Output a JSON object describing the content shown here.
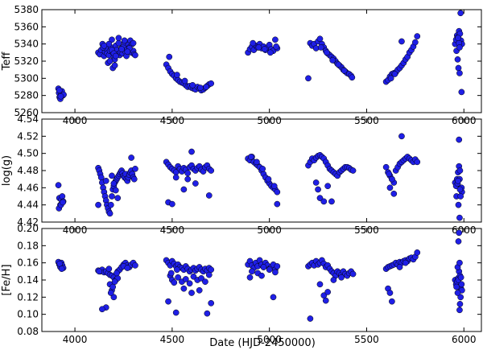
{
  "chart_data": {
    "type": "scatter",
    "xlabel": "Date (HJD-2450000)",
    "xlim": [
      3830,
      6090
    ],
    "xticks": [
      4000,
      4500,
      5000,
      5500,
      6000
    ],
    "marker_color": "#1f1fe6",
    "panels": [
      {
        "ylabel": "Teff",
        "ylim": [
          5260,
          5380
        ],
        "yticks": [
          5260,
          5280,
          5300,
          5320,
          5340,
          5360,
          5380
        ],
        "x": [
          3915,
          3918,
          3921,
          3925,
          3930,
          3933,
          3938,
          3942,
          3920,
          3927,
          4120,
          4128,
          4135,
          4142,
          4150,
          4155,
          4160,
          4165,
          4170,
          4175,
          4180,
          4185,
          4190,
          4195,
          4200,
          4205,
          4210,
          4215,
          4220,
          4225,
          4230,
          4235,
          4240,
          4245,
          4250,
          4255,
          4260,
          4265,
          4270,
          4275,
          4280,
          4285,
          4290,
          4295,
          4300,
          4305,
          4310,
          4145,
          4175,
          4195,
          4205,
          4225,
          4255,
          4280,
          4300,
          4180,
          4190,
          4200,
          4210,
          4150,
          4240,
          4270,
          4470,
          4480,
          4490,
          4500,
          4510,
          4520,
          4530,
          4540,
          4550,
          4560,
          4570,
          4580,
          4590,
          4600,
          4610,
          4620,
          4630,
          4640,
          4650,
          4660,
          4670,
          4680,
          4690,
          4700,
          4485,
          4525,
          4565,
          4605,
          4645,
          4675,
          4890,
          4900,
          4910,
          4920,
          4930,
          4940,
          4950,
          4960,
          4970,
          4980,
          4990,
          5000,
          5010,
          5020,
          5030,
          5040,
          4915,
          4945,
          4975,
          5005,
          5035,
          5200,
          5210,
          5220,
          5230,
          5240,
          5250,
          5260,
          5270,
          5280,
          5290,
          5300,
          5310,
          5320,
          5330,
          5340,
          5350,
          5360,
          5370,
          5380,
          5390,
          5400,
          5410,
          5420,
          5425,
          5265,
          5295,
          5325,
          5355,
          5385,
          5600,
          5610,
          5620,
          5630,
          5640,
          5650,
          5660,
          5670,
          5680,
          5690,
          5700,
          5710,
          5720,
          5730,
          5740,
          5750,
          5760,
          5680,
          5625,
          5645,
          5955,
          5960,
          5965,
          5970,
          5975,
          5980,
          5985,
          5990,
          5962,
          5968,
          5972,
          5978,
          5983,
          5988,
          5975,
          5970,
          5978
        ],
        "y": [
          5288,
          5283,
          5278,
          5276,
          5282,
          5285,
          5280,
          5281,
          5286,
          5279,
          5330,
          5328,
          5333,
          5340,
          5326,
          5331,
          5335,
          5329,
          5318,
          5327,
          5332,
          5336,
          5345,
          5330,
          5325,
          5322,
          5338,
          5333,
          5328,
          5341,
          5327,
          5330,
          5335,
          5329,
          5337,
          5342,
          5331,
          5326,
          5334,
          5339,
          5336,
          5344,
          5330,
          5340,
          5332,
          5328,
          5327,
          5336,
          5340,
          5312,
          5315,
          5347,
          5344,
          5335,
          5341,
          5320,
          5333,
          5329,
          5326,
          5338,
          5334,
          5331,
          5316,
          5312,
          5308,
          5305,
          5303,
          5300,
          5298,
          5296,
          5295,
          5294,
          5292,
          5290,
          5291,
          5289,
          5288,
          5287,
          5290,
          5288,
          5286,
          5287,
          5289,
          5291,
          5293,
          5294,
          5325,
          5304,
          5297,
          5292,
          5289,
          5290,
          5330,
          5334,
          5337,
          5333,
          5338,
          5336,
          5340,
          5335,
          5337,
          5333,
          5336,
          5339,
          5334,
          5332,
          5345,
          5335,
          5341,
          5336,
          5334,
          5330,
          5337,
          5300,
          5341,
          5338,
          5340,
          5335,
          5343,
          5346,
          5340,
          5336,
          5332,
          5329,
          5327,
          5325,
          5323,
          5320,
          5317,
          5315,
          5313,
          5310,
          5308,
          5306,
          5305,
          5303,
          5301,
          5336,
          5330,
          5321,
          5316,
          5309,
          5296,
          5298,
          5302,
          5305,
          5306,
          5307,
          5310,
          5312,
          5315,
          5318,
          5322,
          5325,
          5330,
          5333,
          5337,
          5342,
          5349,
          5343,
          5300,
          5305,
          5340,
          5345,
          5350,
          5348,
          5355,
          5352,
          5344,
          5340,
          5332,
          5322,
          5312,
          5306,
          5376,
          5284,
          5341,
          5347,
          5336
        ]
      },
      {
        "ylabel": "log(g)",
        "ylim": [
          4.42,
          4.54
        ],
        "yticks": [
          4.42,
          4.44,
          4.46,
          4.48,
          4.5,
          4.52,
          4.54
        ],
        "x": [
          3915,
          3920,
          3925,
          3930,
          3935,
          3940,
          3918,
          3928,
          3938,
          4120,
          4125,
          4130,
          4135,
          4140,
          4145,
          4150,
          4155,
          4160,
          4165,
          4170,
          4175,
          4180,
          4185,
          4190,
          4195,
          4200,
          4205,
          4210,
          4215,
          4220,
          4225,
          4230,
          4235,
          4240,
          4245,
          4250,
          4255,
          4260,
          4265,
          4270,
          4275,
          4280,
          4285,
          4290,
          4295,
          4300,
          4305,
          4310,
          4120,
          4160,
          4190,
          4200,
          4210,
          4220,
          4290,
          4470,
          4480,
          4490,
          4500,
          4510,
          4520,
          4530,
          4540,
          4550,
          4560,
          4570,
          4580,
          4590,
          4600,
          4610,
          4620,
          4630,
          4640,
          4650,
          4660,
          4670,
          4680,
          4690,
          4700,
          4480,
          4500,
          4560,
          4600,
          4620,
          4690,
          4520,
          4580,
          4890,
          4900,
          4910,
          4920,
          4930,
          4940,
          4950,
          4960,
          4970,
          4980,
          4990,
          5000,
          5010,
          5020,
          5030,
          5040,
          4905,
          4935,
          4965,
          4995,
          5025,
          5040,
          5200,
          5210,
          5220,
          5230,
          5240,
          5250,
          5260,
          5270,
          5280,
          5290,
          5300,
          5310,
          5320,
          5330,
          5340,
          5350,
          5360,
          5370,
          5380,
          5390,
          5400,
          5410,
          5420,
          5430,
          5240,
          5250,
          5260,
          5280,
          5300,
          5320,
          5600,
          5610,
          5620,
          5630,
          5640,
          5650,
          5660,
          5670,
          5680,
          5690,
          5700,
          5710,
          5720,
          5730,
          5740,
          5750,
          5760,
          5620,
          5640,
          5680,
          5615,
          5630,
          5955,
          5960,
          5965,
          5970,
          5975,
          5980,
          5985,
          5990,
          5962,
          5968,
          5972,
          5978,
          5983,
          5988,
          5975,
          5978,
          5970,
          5980
        ],
        "y": [
          4.463,
          4.448,
          4.44,
          4.446,
          4.45,
          4.444,
          4.436,
          4.44,
          4.443,
          4.483,
          4.48,
          4.476,
          4.472,
          4.466,
          4.46,
          4.455,
          4.45,
          4.445,
          4.44,
          4.436,
          4.432,
          4.43,
          4.44,
          4.45,
          4.458,
          4.462,
          4.466,
          4.468,
          4.47,
          4.472,
          4.474,
          4.476,
          4.478,
          4.48,
          4.477,
          4.474,
          4.472,
          4.476,
          4.47,
          4.468,
          4.472,
          4.475,
          4.478,
          4.48,
          4.476,
          4.472,
          4.47,
          4.482,
          4.44,
          4.468,
          4.474,
          4.465,
          4.457,
          4.448,
          4.495,
          4.49,
          4.487,
          4.484,
          4.482,
          4.48,
          4.478,
          4.485,
          4.482,
          4.479,
          4.483,
          4.481,
          4.477,
          4.484,
          4.486,
          4.482,
          4.48,
          4.483,
          4.485,
          4.481,
          4.479,
          4.484,
          4.486,
          4.482,
          4.48,
          4.443,
          4.441,
          4.458,
          4.502,
          4.465,
          4.451,
          4.472,
          4.47,
          4.494,
          4.492,
          4.496,
          4.49,
          4.488,
          4.486,
          4.484,
          4.48,
          4.476,
          4.472,
          4.468,
          4.465,
          4.462,
          4.46,
          4.458,
          4.455,
          4.496,
          4.49,
          4.482,
          4.47,
          4.462,
          4.441,
          4.486,
          4.49,
          4.494,
          4.492,
          4.495,
          4.497,
          4.498,
          4.496,
          4.494,
          4.49,
          4.486,
          4.482,
          4.48,
          4.478,
          4.476,
          4.474,
          4.478,
          4.48,
          4.482,
          4.484,
          4.484,
          4.483,
          4.481,
          4.48,
          4.466,
          4.458,
          4.448,
          4.444,
          4.462,
          4.444,
          4.484,
          4.478,
          4.474,
          4.47,
          4.466,
          4.48,
          4.484,
          4.488,
          4.49,
          4.492,
          4.494,
          4.496,
          4.494,
          4.492,
          4.49,
          4.493,
          4.49,
          4.46,
          4.453,
          4.52,
          4.476,
          4.47,
          4.466,
          4.462,
          4.47,
          4.478,
          4.485,
          4.48,
          4.46,
          4.455,
          4.45,
          4.465,
          4.44,
          4.47,
          4.45,
          4.46,
          4.516,
          4.425,
          4.468,
          4.458
        ]
      },
      {
        "ylabel": "[Fe/H]",
        "ylim": [
          0.08,
          0.2
        ],
        "yticks": [
          0.08,
          0.1,
          0.12,
          0.14,
          0.16,
          0.18,
          0.2
        ],
        "x": [
          3915,
          3920,
          3925,
          3930,
          3935,
          3940,
          3922,
          3932,
          4120,
          4130,
          4140,
          4150,
          4160,
          4170,
          4180,
          4190,
          4200,
          4210,
          4220,
          4230,
          4240,
          4250,
          4260,
          4270,
          4280,
          4290,
          4300,
          4310,
          4180,
          4190,
          4200,
          4160,
          4140,
          4220,
          4195,
          4205,
          4185,
          4125,
          4175,
          4215,
          4250,
          4270,
          4470,
          4480,
          4490,
          4500,
          4510,
          4520,
          4530,
          4540,
          4550,
          4560,
          4570,
          4580,
          4590,
          4600,
          4610,
          4620,
          4630,
          4640,
          4650,
          4660,
          4670,
          4680,
          4690,
          4700,
          4490,
          4500,
          4510,
          4530,
          4550,
          4570,
          4590,
          4610,
          4630,
          4650,
          4670,
          4690,
          4480,
          4520,
          4560,
          4600,
          4640,
          4680,
          4700,
          4495,
          4525,
          4890,
          4900,
          4910,
          4920,
          4930,
          4940,
          4950,
          4960,
          4970,
          4980,
          4990,
          5000,
          5010,
          5020,
          5030,
          5040,
          4910,
          4940,
          4970,
          5000,
          5030,
          5020,
          4900,
          4960,
          5200,
          5210,
          5220,
          5230,
          5240,
          5250,
          5260,
          5270,
          5280,
          5290,
          5300,
          5310,
          5320,
          5330,
          5340,
          5350,
          5360,
          5370,
          5380,
          5390,
          5400,
          5410,
          5420,
          5430,
          5260,
          5280,
          5300,
          5210,
          5290,
          5330,
          5370,
          5600,
          5610,
          5620,
          5630,
          5640,
          5650,
          5660,
          5670,
          5680,
          5690,
          5700,
          5710,
          5720,
          5730,
          5740,
          5750,
          5760,
          5610,
          5620,
          5630,
          5670,
          5700,
          5955,
          5960,
          5965,
          5970,
          5975,
          5980,
          5985,
          5990,
          5962,
          5968,
          5972,
          5978,
          5983,
          5988,
          5975,
          5978,
          5972,
          5980,
          5968,
          5985
        ],
        "y": [
          0.161,
          0.158,
          0.155,
          0.16,
          0.157,
          0.154,
          0.159,
          0.153,
          0.151,
          0.15,
          0.152,
          0.149,
          0.15,
          0.148,
          0.146,
          0.145,
          0.143,
          0.14,
          0.15,
          0.152,
          0.155,
          0.158,
          0.16,
          0.157,
          0.155,
          0.158,
          0.16,
          0.157,
          0.135,
          0.128,
          0.12,
          0.108,
          0.106,
          0.142,
          0.132,
          0.138,
          0.125,
          0.15,
          0.153,
          0.148,
          0.156,
          0.154,
          0.163,
          0.16,
          0.157,
          0.162,
          0.159,
          0.156,
          0.158,
          0.155,
          0.154,
          0.152,
          0.156,
          0.153,
          0.15,
          0.152,
          0.154,
          0.151,
          0.153,
          0.155,
          0.152,
          0.15,
          0.153,
          0.151,
          0.154,
          0.152,
          0.145,
          0.14,
          0.137,
          0.143,
          0.138,
          0.141,
          0.136,
          0.144,
          0.14,
          0.142,
          0.138,
          0.146,
          0.115,
          0.102,
          0.13,
          0.125,
          0.128,
          0.101,
          0.113,
          0.148,
          0.152,
          0.158,
          0.162,
          0.157,
          0.154,
          0.16,
          0.156,
          0.163,
          0.158,
          0.155,
          0.16,
          0.157,
          0.153,
          0.155,
          0.158,
          0.152,
          0.156,
          0.15,
          0.148,
          0.155,
          0.152,
          0.149,
          0.12,
          0.143,
          0.145,
          0.156,
          0.158,
          0.16,
          0.157,
          0.162,
          0.158,
          0.16,
          0.163,
          0.159,
          0.155,
          0.157,
          0.153,
          0.15,
          0.148,
          0.145,
          0.15,
          0.148,
          0.146,
          0.15,
          0.147,
          0.145,
          0.148,
          0.15,
          0.147,
          0.135,
          0.122,
          0.126,
          0.095,
          0.116,
          0.14,
          0.143,
          0.153,
          0.155,
          0.156,
          0.157,
          0.158,
          0.16,
          0.158,
          0.161,
          0.16,
          0.162,
          0.163,
          0.162,
          0.165,
          0.166,
          0.164,
          0.167,
          0.172,
          0.13,
          0.125,
          0.115,
          0.155,
          0.16,
          0.14,
          0.135,
          0.138,
          0.142,
          0.15,
          0.145,
          0.13,
          0.128,
          0.132,
          0.155,
          0.14,
          0.16,
          0.12,
          0.135,
          0.195,
          0.105,
          0.185,
          0.112,
          0.125,
          0.143
        ]
      }
    ]
  }
}
